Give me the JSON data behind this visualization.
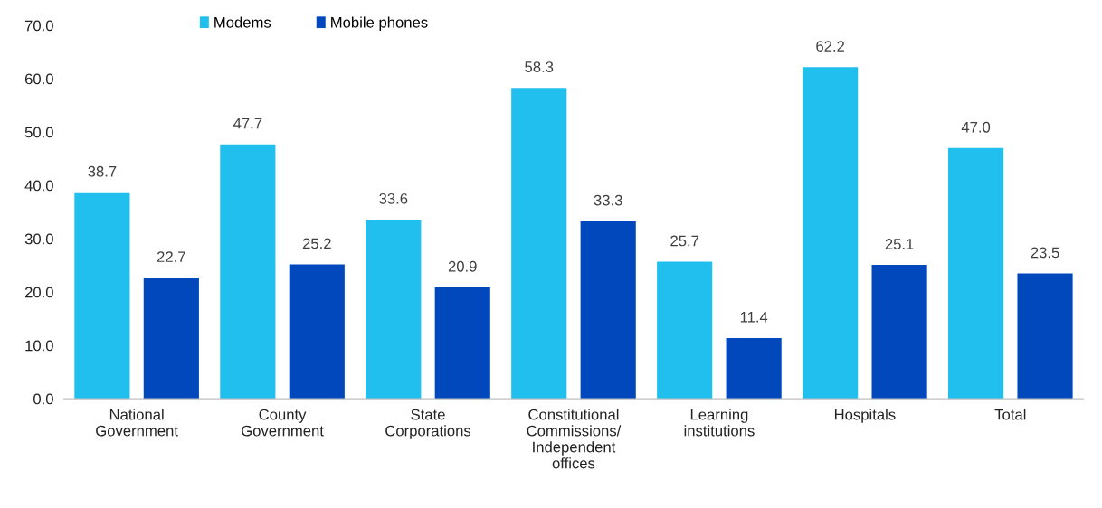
{
  "chart_data": {
    "type": "bar",
    "categories": [
      "National\nGovernment",
      "County\nGovernment",
      "State\nCorporations",
      "Constitutional\nCommissions/\nIndependent\noffices",
      "Learning\ninstitutions",
      "Hospitals",
      "Total"
    ],
    "series": [
      {
        "name": "Modems",
        "color": "#20bfee",
        "values": [
          38.7,
          47.7,
          33.6,
          58.3,
          25.7,
          62.2,
          47.0
        ],
        "value_labels": [
          "38.7",
          "47.7",
          "33.6",
          "58.3",
          "25.7",
          "62.2",
          "47.0"
        ]
      },
      {
        "name": "Mobile phones",
        "color": "#0048bb",
        "values": [
          22.7,
          25.2,
          20.9,
          33.3,
          11.4,
          25.1,
          23.5
        ],
        "value_labels": [
          "22.7",
          "25.2",
          "20.9",
          "33.3",
          "11.4",
          "25.1",
          "23.5"
        ]
      }
    ],
    "ylim": [
      0,
      70
    ],
    "yticks": [
      {
        "value": 0,
        "label": "0.0"
      },
      {
        "value": 10,
        "label": "10.0"
      },
      {
        "value": 20,
        "label": "20.0"
      },
      {
        "value": 30,
        "label": "30.0"
      },
      {
        "value": 40,
        "label": "40.0"
      },
      {
        "value": 50,
        "label": "50.0"
      },
      {
        "value": 60,
        "label": "60.0"
      },
      {
        "value": 70,
        "label": "70.0"
      }
    ],
    "grid": false,
    "legend": "top left"
  }
}
